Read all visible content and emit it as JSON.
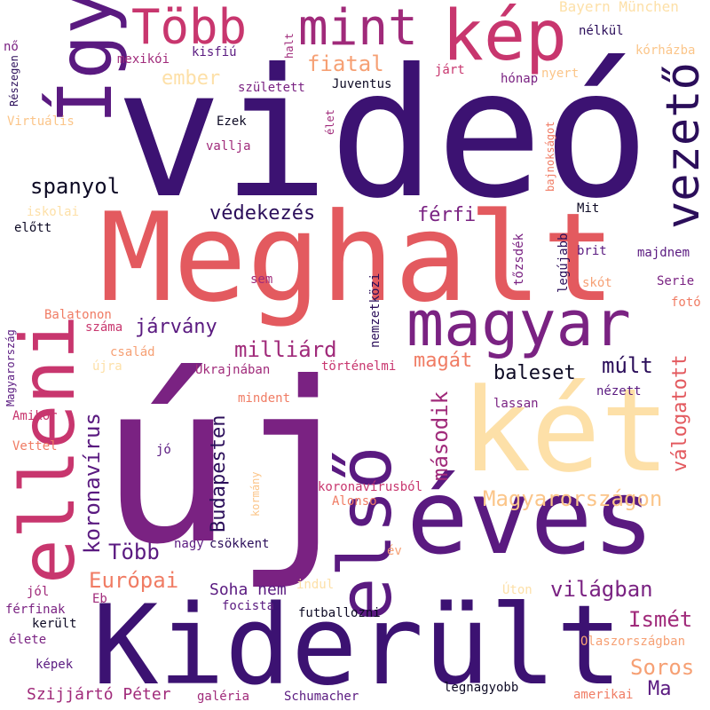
{
  "palette": {
    "background": "#ffffff",
    "deep_purple": "#2b0e5a",
    "indigo": "#3c1272",
    "violet": "#5a1a80",
    "plum": "#7a2282",
    "magenta": "#a02a7a",
    "pink": "#c8366e",
    "rose": "#e35a5f",
    "coral": "#f07c64",
    "salmon": "#f6a074",
    "peach": "#fbc589",
    "light_peach": "#fde0a8",
    "near_black": "#0d0a24"
  },
  "words": {
    "video": "videó",
    "uj": "új",
    "meghalt": "Meghalt",
    "kiderult": "Kiderült",
    "eves": "éves",
    "ket": "két",
    "elso": "első",
    "elleni": "elleni",
    "igy": "Így",
    "vezeto": "vezető",
    "magyar": "magyar",
    "kep": "kép",
    "tobb_top": "Több",
    "mint": "mint",
    "koronavirus": "koronavírus",
    "budapesten": "Budapesten",
    "masodik": "második",
    "magyarorszagon": "Magyarországon",
    "valogatott": "válogatott",
    "spanyol": "spanyol",
    "vedekezes": "védekezés",
    "ferfi": "férfi",
    "fiatal": "fiatal",
    "ember": "ember",
    "jarvany": "járvány",
    "milliard": "milliárd",
    "magat": "magát",
    "baleset": "baleset",
    "mult": "múlt",
    "europai": "Európai",
    "tobb_bottom": "Több",
    "vilagban": "világban",
    "ismet": "Ismét",
    "soros": "Soros",
    "ma": "Ma",
    "soha_nem": "Soha nem",
    "szijjarto_peter": "Szijjártó Péter",
    "bayern_munchen": "Bayern München",
    "nelkul": "nélkül",
    "korhazba": "kórházba",
    "reszegen": "Részegen",
    "no": "nő",
    "halt": "halt",
    "kisfiu": "kisfiú",
    "mexikoi": "mexikói",
    "jart": "járt",
    "nyert": "nyert",
    "honap": "hónap",
    "juventus": "Juventus",
    "szuletett": "született",
    "virtualis": "Virtuális",
    "ezek": "Ezek",
    "elet": "élet",
    "vallja": "vallja",
    "bajnoksagot": "bajnokságot",
    "iskolai": "iskolai",
    "elott": "előtt",
    "mit": "Mit",
    "tozsdek": "tőzsdék",
    "legujabb": "legújabb",
    "brit": "brit",
    "majdnem": "majdnem",
    "sem": "sem",
    "skot": "skót",
    "serie": "Serie",
    "magyarorszag": "Magyarország",
    "balatonon": "Balatonon",
    "szama": "száma",
    "nemzetkozi": "nemzetközi",
    "foto": "fotó",
    "csalad": "család",
    "ujra": "újra",
    "ukrajnaban": "Ukrajnában",
    "tortenelmi": "történelmi",
    "nezett": "nézett",
    "mindent": "mindent",
    "amikor": "Amikor",
    "lassan": "lassan",
    "vettel": "Vettel",
    "jo": "jó",
    "kormany": "kormány",
    "koronavirusbol": "koronavírusból",
    "alonso": "Alonso",
    "nagy": "nagy",
    "csokkent": "csökkent",
    "ev": "év",
    "jol": "jól",
    "indul": "indul",
    "uton": "Úton",
    "ferfinak": "férfinak",
    "eb": "Eb",
    "kerult": "került",
    "focista": "focista",
    "futballozni": "futballozni",
    "elete": "élete",
    "olaszorszagban": "Olaszországban",
    "kepek": "képek",
    "galeria": "galéria",
    "schumacher": "Schumacher",
    "legnagyobb": "legnagyobb",
    "amerikai": "amerikai"
  }
}
